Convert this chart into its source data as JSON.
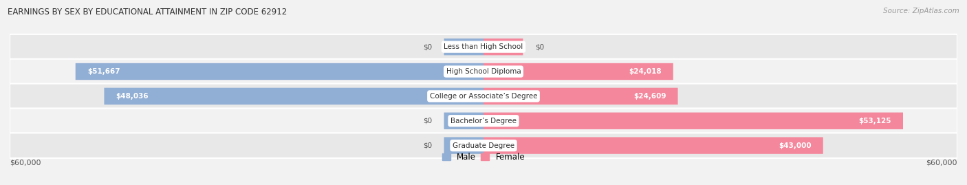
{
  "title": "EARNINGS BY SEX BY EDUCATIONAL ATTAINMENT IN ZIP CODE 62912",
  "source": "Source: ZipAtlas.com",
  "categories": [
    "Less than High School",
    "High School Diploma",
    "College or Associate’s Degree",
    "Bachelor’s Degree",
    "Graduate Degree"
  ],
  "male_values": [
    0,
    51667,
    48036,
    0,
    0
  ],
  "female_values": [
    0,
    24018,
    24609,
    53125,
    43000
  ],
  "male_stub": [
    5000,
    0,
    0,
    5000,
    5000
  ],
  "female_stub": [
    5000,
    0,
    0,
    0,
    0
  ],
  "male_color": "#91aed4",
  "female_color": "#f4879c",
  "max_value": 60000,
  "bar_height": 0.68,
  "bg_color": "#f2f2f2",
  "row_bg_even": "#e8e8e8",
  "row_bg_odd": "#f2f2f2",
  "axis_label": "$60,000",
  "legend_male": "Male",
  "legend_female": "Female"
}
